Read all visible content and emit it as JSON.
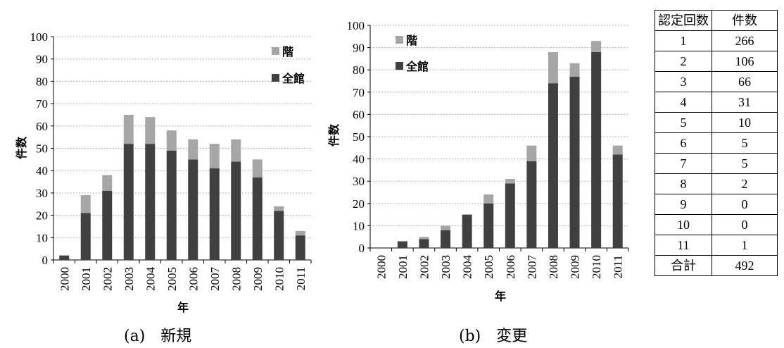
{
  "chart_data": [
    {
      "type": "bar",
      "stacked": true,
      "caption": "(a)　新規",
      "categories": [
        "2000",
        "2001",
        "2002",
        "2003",
        "2004",
        "2005",
        "2006",
        "2007",
        "2008",
        "2009",
        "2010",
        "2011"
      ],
      "series": [
        {
          "name": "全館",
          "color": "#404040",
          "values": [
            2,
            21,
            31,
            52,
            52,
            49,
            45,
            41,
            44,
            37,
            22,
            11
          ]
        },
        {
          "name": "階",
          "color": "#a6a6a6",
          "values": [
            0,
            8,
            7,
            13,
            12,
            9,
            9,
            11,
            10,
            8,
            2,
            2
          ]
        }
      ],
      "xlabel": "年",
      "ylabel": "件数",
      "ylim": [
        0,
        100
      ],
      "yticks": [
        0,
        10,
        20,
        30,
        40,
        50,
        60,
        70,
        80,
        90,
        100
      ],
      "grid": true,
      "legend_position": "top-right"
    },
    {
      "type": "bar",
      "stacked": true,
      "caption": "(b)　変更",
      "categories": [
        "2000",
        "2001",
        "2002",
        "2003",
        "2004",
        "2005",
        "2006",
        "2007",
        "2008",
        "2009",
        "2010",
        "2011"
      ],
      "series": [
        {
          "name": "全館",
          "color": "#404040",
          "values": [
            0,
            3,
            4,
            8,
            15,
            20,
            29,
            39,
            74,
            77,
            88,
            42
          ]
        },
        {
          "name": "階",
          "color": "#a6a6a6",
          "values": [
            0,
            0,
            1,
            2,
            0,
            4,
            2,
            7,
            14,
            6,
            5,
            4
          ]
        }
      ],
      "xlabel": "年",
      "ylabel": "件数",
      "ylim": [
        0,
        100
      ],
      "yticks": [
        0,
        10,
        20,
        30,
        40,
        50,
        60,
        70,
        80,
        90,
        100
      ],
      "grid": true,
      "legend_position": "top-left"
    }
  ],
  "table": {
    "headers": [
      "認定回数",
      "件数"
    ],
    "rows": [
      [
        "1",
        "266"
      ],
      [
        "2",
        "106"
      ],
      [
        "3",
        "66"
      ],
      [
        "4",
        "31"
      ],
      [
        "5",
        "10"
      ],
      [
        "6",
        "5"
      ],
      [
        "7",
        "5"
      ],
      [
        "8",
        "2"
      ],
      [
        "9",
        "0"
      ],
      [
        "10",
        "0"
      ],
      [
        "11",
        "1"
      ]
    ],
    "total_label": "合計",
    "total_value": "492"
  }
}
